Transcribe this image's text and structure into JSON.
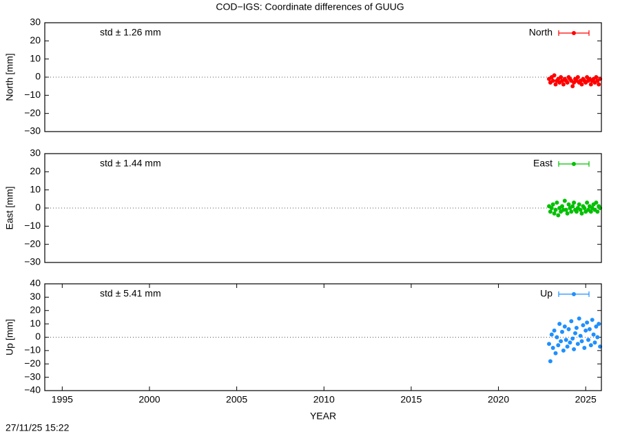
{
  "chart_data": [
    {
      "type": "scatter",
      "title": "COD−IGS: Coordinate differences of GUUG",
      "ylabel": "North [mm]",
      "annotation": "std ± 1.26 mm",
      "xlim": [
        1994,
        2025.9
      ],
      "ylim": [
        -30,
        30
      ],
      "yticks": [
        30,
        20,
        10,
        0,
        {
          "value": -10,
          "label": "−10"
        },
        {
          "value": -20,
          "label": "−20"
        },
        {
          "value": -30,
          "label": "−30"
        }
      ],
      "x": [
        2022.9,
        2022.975,
        2023.05,
        2023.125,
        2023.2,
        2023.275,
        2023.35,
        2023.425,
        2023.5,
        2023.575,
        2023.65,
        2023.725,
        2023.8,
        2023.875,
        2023.95,
        2024.025,
        2024.1,
        2024.175,
        2024.25,
        2024.325,
        2024.4,
        2024.475,
        2024.55,
        2024.625,
        2024.7,
        2024.775,
        2024.85,
        2024.925,
        2025.0,
        2025.075,
        2025.15,
        2025.225,
        2025.3,
        2025.375,
        2025.45,
        2025.525,
        2025.6,
        2025.675,
        2025.75,
        2025.825
      ],
      "series": [
        {
          "name": "North",
          "color": "#ff0000",
          "values": [
            -1,
            -3,
            0,
            -2,
            1,
            -4,
            -2,
            -1,
            -3,
            0,
            -2,
            -4,
            -1,
            -2,
            -3,
            0,
            -1,
            -2,
            -5,
            -3,
            -1,
            -2,
            0,
            -3,
            -2,
            -4,
            -1,
            -2,
            -3,
            0,
            -2,
            -1,
            -4,
            -2,
            -1,
            -3,
            0,
            -2,
            -4,
            -1
          ]
        }
      ]
    },
    {
      "type": "scatter",
      "ylabel": "East [mm]",
      "annotation": "std ± 1.44 mm",
      "xlim": [
        1994,
        2025.9
      ],
      "ylim": [
        -30,
        30
      ],
      "yticks": [
        30,
        20,
        10,
        0,
        {
          "value": -10,
          "label": "−10"
        },
        {
          "value": -20,
          "label": "−20"
        },
        {
          "value": -30,
          "label": "−30"
        }
      ],
      "x": [
        2022.9,
        2022.975,
        2023.05,
        2023.125,
        2023.2,
        2023.275,
        2023.35,
        2023.425,
        2023.5,
        2023.575,
        2023.65,
        2023.725,
        2023.8,
        2023.875,
        2023.95,
        2024.025,
        2024.1,
        2024.175,
        2024.25,
        2024.325,
        2024.4,
        2024.475,
        2024.55,
        2024.625,
        2024.7,
        2024.775,
        2024.85,
        2024.925,
        2025.0,
        2025.075,
        2025.15,
        2025.225,
        2025.3,
        2025.375,
        2025.45,
        2025.525,
        2025.6,
        2025.675,
        2025.75,
        2025.825
      ],
      "series": [
        {
          "name": "East",
          "color": "#00c000",
          "values": [
            1,
            -2,
            0,
            2,
            -3,
            -1,
            3,
            -4,
            0,
            -2,
            1,
            -1,
            4,
            -1,
            -3,
            2,
            0,
            -2,
            1,
            3,
            -1,
            -2,
            0,
            2,
            -1,
            -3,
            1,
            0,
            -2,
            3,
            -1,
            1,
            -2,
            0,
            2,
            -1,
            3,
            -2,
            1,
            0
          ]
        }
      ]
    },
    {
      "type": "scatter",
      "ylabel": "Up [mm]",
      "annotation": "std ± 5.41 mm",
      "xlabel": "YEAR",
      "xlim": [
        1994,
        2025.9
      ],
      "ylim": [
        -40,
        40
      ],
      "xticks": [
        1995,
        2000,
        2005,
        2010,
        2015,
        2020,
        2025
      ],
      "yticks": [
        40,
        30,
        20,
        10,
        0,
        {
          "value": -10,
          "label": "−10"
        },
        {
          "value": -20,
          "label": "−20"
        },
        {
          "value": -30,
          "label": "−30"
        },
        {
          "value": -40,
          "label": "−40"
        }
      ],
      "x": [
        2022.9,
        2022.975,
        2023.05,
        2023.125,
        2023.2,
        2023.275,
        2023.35,
        2023.425,
        2023.5,
        2023.575,
        2023.65,
        2023.725,
        2023.8,
        2023.875,
        2023.95,
        2024.025,
        2024.1,
        2024.175,
        2024.25,
        2024.325,
        2024.4,
        2024.475,
        2024.55,
        2024.625,
        2024.7,
        2024.775,
        2024.85,
        2024.925,
        2025.0,
        2025.075,
        2025.15,
        2025.225,
        2025.3,
        2025.375,
        2025.45,
        2025.525,
        2025.6,
        2025.675,
        2025.75,
        2025.825
      ],
      "series": [
        {
          "name": "Up",
          "color": "#1e90ff",
          "values": [
            -5,
            -18,
            2,
            -8,
            5,
            -12,
            0,
            -6,
            10,
            -3,
            4,
            -10,
            8,
            -2,
            -7,
            6,
            -4,
            12,
            -1,
            -9,
            3,
            7,
            -5,
            14,
            1,
            -3,
            9,
            -8,
            5,
            11,
            -2,
            6,
            -6,
            13,
            2,
            -4,
            8,
            0,
            10,
            -7
          ]
        }
      ]
    }
  ],
  "footer": "27/11/25 15:22"
}
